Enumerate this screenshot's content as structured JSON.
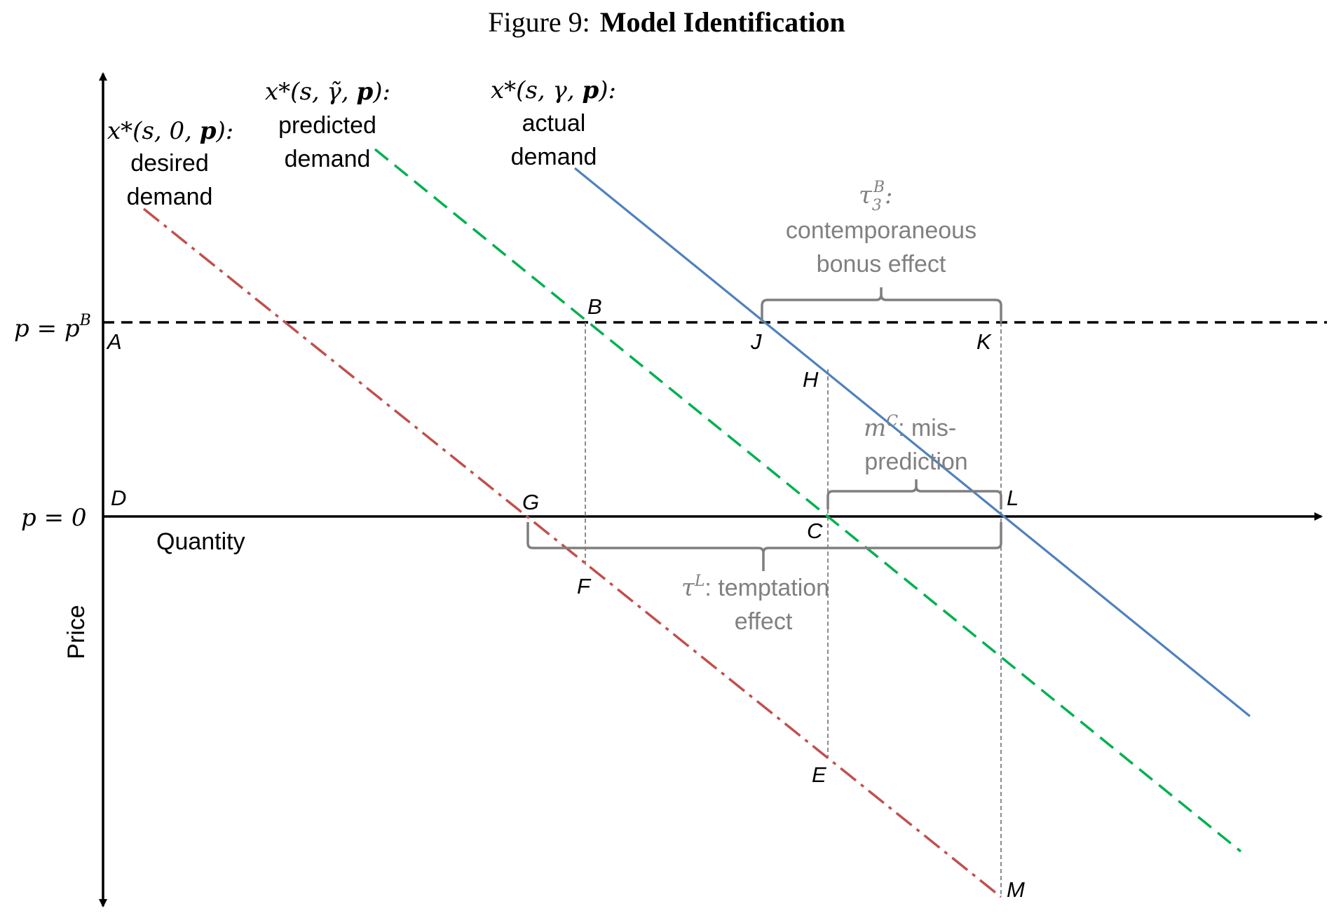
{
  "caption": {
    "prefix": "Figure 9:",
    "title": "Model Identification"
  },
  "axes": {
    "x_label": "Quantity",
    "y_label": "Price",
    "price_bonus_label": "p = p",
    "price_bonus_sup": "B",
    "price_zero_label": "p = 0"
  },
  "curves": {
    "desired": {
      "math_prefix": "x*(s, 0, ",
      "math_p": "p",
      "math_suffix": "):",
      "line1": "desired",
      "line2": "demand",
      "color": "#c0504d"
    },
    "predicted": {
      "math_prefix": "x*(s, γ̃, ",
      "math_p": "p",
      "math_suffix": "):",
      "line1": "predicted",
      "line2": "demand",
      "color": "#00b050"
    },
    "actual": {
      "math_prefix": "x*(s, γ, ",
      "math_p": "p",
      "math_suffix": "):",
      "line1": "actual",
      "line2": "demand",
      "color": "#4f81bd"
    }
  },
  "points": {
    "A": "A",
    "B": "B",
    "C": "C",
    "D": "D",
    "E": "E",
    "F": "F",
    "G": "G",
    "H": "H",
    "J": "J",
    "K": "K",
    "L": "L",
    "M": "M"
  },
  "annotations": {
    "bonus_effect": {
      "symbol": "τ",
      "sub": "3",
      "sup": "B",
      "colon": ":",
      "line1": "contemporaneous",
      "line2": "bonus effect"
    },
    "misprediction": {
      "symbol": "m",
      "sup": "C",
      "text": ": mis-",
      "line2": "prediction"
    },
    "temptation": {
      "symbol": "τ",
      "sup": "L",
      "text": ": temptation",
      "line2": "effect"
    }
  },
  "colors": {
    "axis": "#000000",
    "guide": "#808080",
    "brace": "#7f7f7f"
  }
}
